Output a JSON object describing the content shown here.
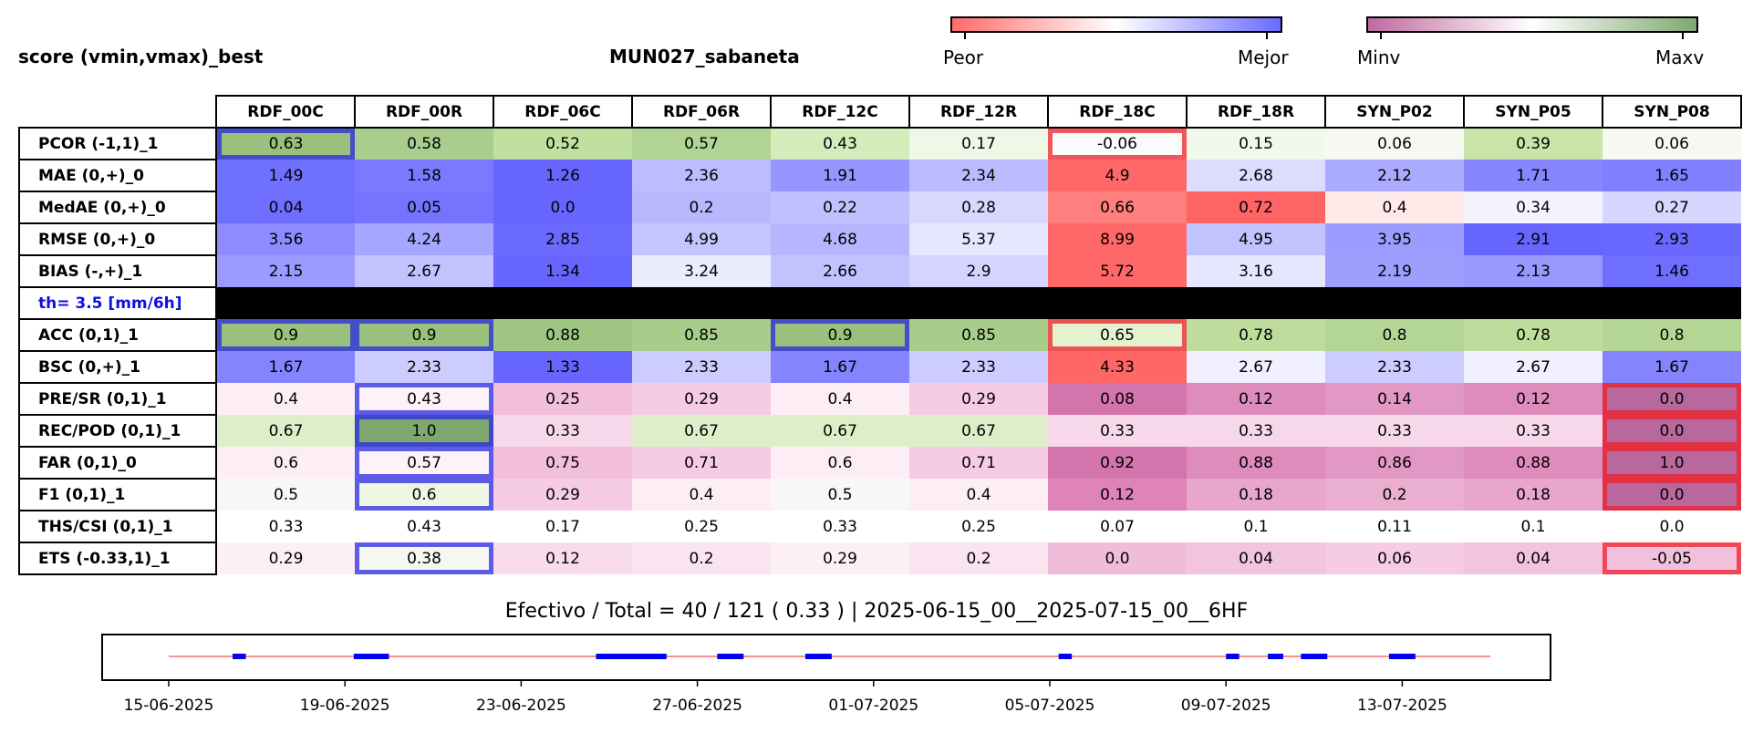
{
  "header": {
    "left_title": "score (vmin,vmax)_best",
    "center_title": "MUN027_sabaneta"
  },
  "colorbar_1": {
    "left_label": "Peor",
    "right_label": "Mejor",
    "from_color": "#ff6b6b",
    "mid_color": "#ffffff",
    "to_color": "#6b6bff"
  },
  "colorbar_2": {
    "left_label": "Minv",
    "right_label": "Maxv",
    "from_color": "#c06aa0",
    "mid_color": "#ffffff",
    "to_color": "#7fa870"
  },
  "chart_data": {
    "type": "heatmap",
    "columns": [
      "RDF_00C",
      "RDF_00R",
      "RDF_06C",
      "RDF_06R",
      "RDF_12C",
      "RDF_12R",
      "RDF_18C",
      "RDF_18R",
      "SYN_P02",
      "SYN_P05",
      "SYN_P08"
    ],
    "rows": [
      {
        "label": "PCOR (-1,1)_1",
        "values": [
          "0.63",
          "0.58",
          "0.52",
          "0.57",
          "0.43",
          "0.17",
          "-0.06",
          "0.15",
          "0.06",
          "0.39",
          "0.06"
        ],
        "colors": [
          "#99c07c",
          "#a8cd8d",
          "#c0e09f",
          "#b0d494",
          "#d4ebbc",
          "#f0f7e7",
          "#fbfbfa",
          "#f2f8ea",
          "#f6f9f2",
          "#c8e4a8",
          "#f6f9f2"
        ],
        "best": [
          0
        ],
        "worst": [
          6
        ]
      },
      {
        "label": "MAE (0,+)_0",
        "values": [
          "1.49",
          "1.58",
          "1.26",
          "2.36",
          "1.91",
          "2.34",
          "4.9",
          "2.68",
          "2.12",
          "1.71",
          "1.65"
        ],
        "colors": [
          "#7070ff",
          "#7a7aff",
          "#6666ff",
          "#bcbcff",
          "#9696ff",
          "#babaff",
          "#ff6868",
          "#dcdcff",
          "#aaaaff",
          "#8686ff",
          "#8080ff"
        ],
        "best": [],
        "worst": []
      },
      {
        "label": "MedAE (0,+)_0",
        "values": [
          "0.04",
          "0.05",
          "0.0",
          "0.2",
          "0.22",
          "0.28",
          "0.66",
          "0.72",
          "0.4",
          "0.34",
          "0.27"
        ],
        "colors": [
          "#6e6eff",
          "#7474ff",
          "#6666ff",
          "#b8b8ff",
          "#c0c0ff",
          "#d8d8ff",
          "#ff7e7e",
          "#ff6464",
          "#ffeaea",
          "#f4f4ff",
          "#d6d6ff"
        ],
        "best": [],
        "worst": []
      },
      {
        "label": "RMSE (0,+)_0",
        "values": [
          "3.56",
          "4.24",
          "2.85",
          "4.99",
          "4.68",
          "5.37",
          "8.99",
          "4.95",
          "3.95",
          "2.91",
          "2.93"
        ],
        "colors": [
          "#8c8cff",
          "#a6a6ff",
          "#6a6aff",
          "#c4c4ff",
          "#b6b6ff",
          "#e6e6ff",
          "#ff6868",
          "#c2c2ff",
          "#9c9cff",
          "#6666ff",
          "#6868ff"
        ],
        "best": [],
        "worst": []
      },
      {
        "label": "BIAS (-,+)_1",
        "values": [
          "2.15",
          "2.67",
          "1.34",
          "3.24",
          "2.66",
          "2.9",
          "5.72",
          "3.16",
          "2.19",
          "2.13",
          "1.46"
        ],
        "colors": [
          "#9a9aff",
          "#c2c2ff",
          "#6666ff",
          "#ececff",
          "#c2c2ff",
          "#d4d4ff",
          "#ff6868",
          "#e6e6ff",
          "#9e9eff",
          "#9898ff",
          "#6e6eff"
        ],
        "best": [],
        "worst": []
      },
      {
        "label": "th= 3.5 [mm/6h]",
        "threshold": true
      },
      {
        "label": "ACC (0,1)_1",
        "values": [
          "0.9",
          "0.9",
          "0.88",
          "0.85",
          "0.9",
          "0.85",
          "0.65",
          "0.78",
          "0.8",
          "0.78",
          "0.8"
        ],
        "colors": [
          "#99c07c",
          "#99c07c",
          "#9ec582",
          "#a8cd8b",
          "#99c07c",
          "#a8cd8b",
          "#e4f2cf",
          "#bedd9d",
          "#b4d695",
          "#bedd9d",
          "#b4d695"
        ],
        "best": [
          0,
          1,
          4
        ],
        "worst": [
          6
        ]
      },
      {
        "label": "BSC (0,+)_1",
        "values": [
          "1.67",
          "2.33",
          "1.33",
          "2.33",
          "1.67",
          "2.33",
          "4.33",
          "2.67",
          "2.33",
          "2.67",
          "1.67"
        ],
        "colors": [
          "#8484ff",
          "#ccccff",
          "#6666ff",
          "#ccccff",
          "#8484ff",
          "#ccccff",
          "#ff6666",
          "#f0f0ff",
          "#ccccff",
          "#f0f0ff",
          "#8484ff"
        ],
        "best": [],
        "worst": []
      },
      {
        "label": "PRE/SR (0,1)_1",
        "values": [
          "0.4",
          "0.43",
          "0.25",
          "0.29",
          "0.4",
          "0.29",
          "0.08",
          "0.12",
          "0.14",
          "0.12",
          "0.0"
        ],
        "colors": [
          "#fdeef6",
          "#fdf2f8",
          "#f1bedc",
          "#f5cce4",
          "#fdeef6",
          "#f5cce4",
          "#d474ac",
          "#de8cbc",
          "#e298c4",
          "#de8cbc",
          "#b8689c"
        ],
        "best": [
          1
        ],
        "worst": [
          10
        ]
      },
      {
        "label": "REC/POD (0,1)_1",
        "values": [
          "0.67",
          "1.0",
          "0.33",
          "0.67",
          "0.67",
          "0.67",
          "0.33",
          "0.33",
          "0.33",
          "0.33",
          "0.0"
        ],
        "colors": [
          "#dcefc8",
          "#7fa870",
          "#f7d8ea",
          "#dcefc8",
          "#dcefc8",
          "#dcefc8",
          "#f7d8ea",
          "#f7d8ea",
          "#f7d8ea",
          "#f7d8ea",
          "#b8689c"
        ],
        "best": [
          1
        ],
        "worst": [
          10
        ]
      },
      {
        "label": "FAR (0,1)_0",
        "values": [
          "0.6",
          "0.57",
          "0.75",
          "0.71",
          "0.6",
          "0.71",
          "0.92",
          "0.88",
          "0.86",
          "0.88",
          "1.0"
        ],
        "colors": [
          "#fdeef6",
          "#fdf2f8",
          "#f1bedc",
          "#f5cce4",
          "#fdeef6",
          "#f5cce4",
          "#d474ac",
          "#de8cbc",
          "#e298c4",
          "#de8cbc",
          "#b8689c"
        ],
        "best": [
          1
        ],
        "worst": [
          10
        ]
      },
      {
        "label": "F1 (0,1)_1",
        "values": [
          "0.5",
          "0.6",
          "0.29",
          "0.4",
          "0.5",
          "0.4",
          "0.12",
          "0.18",
          "0.2",
          "0.18",
          "0.0"
        ],
        "colors": [
          "#f7f7f5",
          "#eef6e4",
          "#f5cce4",
          "#fdeef6",
          "#f7f7f5",
          "#fdeef6",
          "#de84b8",
          "#e8a6cc",
          "#eaaed0",
          "#e8a6cc",
          "#b8689c"
        ],
        "best": [
          1
        ],
        "worst": [
          10
        ]
      },
      {
        "label": "THS/CSI (0,1)_1",
        "values": [
          "0.33",
          "0.43",
          "0.17",
          "0.25",
          "0.33",
          "0.25",
          "0.07",
          "0.1",
          "0.11",
          "0.1",
          "0.0"
        ],
        "colors": [
          "#ffffff",
          "#ffffff",
          "#ffffff",
          "#ffffff",
          "#ffffff",
          "#ffffff",
          "#ffffff",
          "#ffffff",
          "#ffffff",
          "#ffffff",
          "#ffffff"
        ],
        "best": [],
        "worst": []
      },
      {
        "label": "ETS (-0.33,1)_1",
        "values": [
          "0.29",
          "0.38",
          "0.12",
          "0.2",
          "0.29",
          "0.2",
          "0.0",
          "0.04",
          "0.06",
          "0.04",
          "-0.05"
        ],
        "colors": [
          "#fcf0f6",
          "#f4f8ee",
          "#f8dcec",
          "#fae4f0",
          "#fcf0f6",
          "#fae4f0",
          "#f1bcda",
          "#f3c4de",
          "#f5cce4",
          "#f3c4de",
          "#f1c0dc"
        ],
        "best": [
          1
        ],
        "worst": [
          10
        ]
      }
    ],
    "timeline": {
      "x_start": "2025-06-15",
      "x_end": "2025-07-18",
      "tick_labels": [
        "15-06-2025",
        "19-06-2025",
        "23-06-2025",
        "27-06-2025",
        "01-07-2025",
        "05-07-2025",
        "09-07-2025",
        "13-07-2025"
      ],
      "tick_days": [
        0,
        4,
        8,
        12,
        16,
        20,
        24,
        28
      ],
      "line_range_days": [
        0,
        30
      ],
      "segments_days": [
        [
          1.45,
          1.75
        ],
        [
          4.2,
          5.0
        ],
        [
          9.7,
          11.3
        ],
        [
          12.45,
          13.05
        ],
        [
          14.45,
          15.05
        ],
        [
          20.2,
          20.5
        ],
        [
          24.0,
          24.3
        ],
        [
          24.95,
          25.3
        ],
        [
          25.7,
          26.3
        ],
        [
          27.7,
          28.3
        ]
      ],
      "line_color": "#ff6b6b",
      "segment_color": "#0000ee"
    }
  },
  "summary": "Efectivo / Total  =  40 / 121 ( 0.33 ) | 2025-06-15_00__2025-07-15_00__6HF"
}
